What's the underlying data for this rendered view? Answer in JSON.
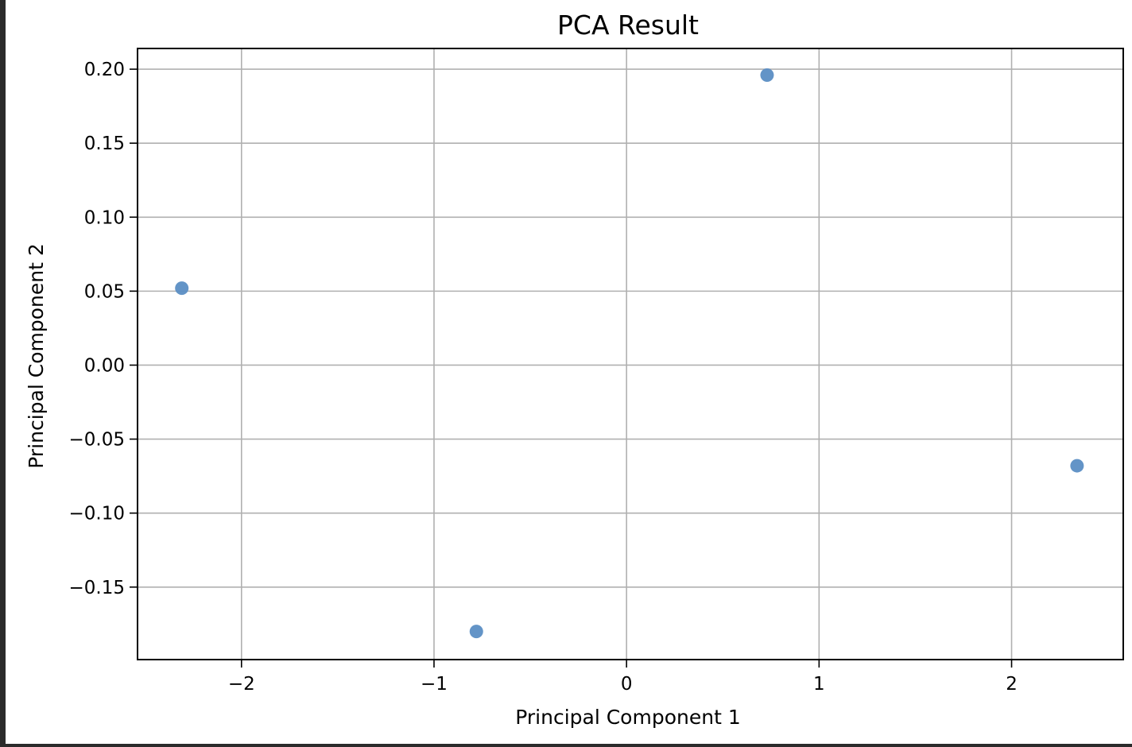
{
  "chart_data": {
    "type": "scatter",
    "title": "PCA Result",
    "xlabel": "Principal Component 1",
    "ylabel": "Principal Component 2",
    "xlim": [
      -2.54,
      2.58
    ],
    "ylim": [
      -0.199,
      0.214
    ],
    "grid": true,
    "x_ticks": [
      {
        "value": -2,
        "label": "−2"
      },
      {
        "value": -1,
        "label": "−1"
      },
      {
        "value": 0,
        "label": "0"
      },
      {
        "value": 1,
        "label": "1"
      },
      {
        "value": 2,
        "label": "2"
      }
    ],
    "y_ticks": [
      {
        "value": 0.2,
        "label": "0.20"
      },
      {
        "value": 0.15,
        "label": "0.15"
      },
      {
        "value": 0.1,
        "label": "0.10"
      },
      {
        "value": 0.05,
        "label": "0.05"
      },
      {
        "value": 0.0,
        "label": "0.00"
      },
      {
        "value": -0.05,
        "label": "−0.05"
      },
      {
        "value": -0.1,
        "label": "−0.10"
      },
      {
        "value": -0.15,
        "label": "−0.15"
      }
    ],
    "series": [
      {
        "color": "#5b8ec4",
        "points": [
          {
            "x": -2.31,
            "y": 0.052
          },
          {
            "x": -0.78,
            "y": -0.18
          },
          {
            "x": 0.73,
            "y": 0.196
          },
          {
            "x": 2.34,
            "y": -0.068
          }
        ]
      }
    ]
  }
}
